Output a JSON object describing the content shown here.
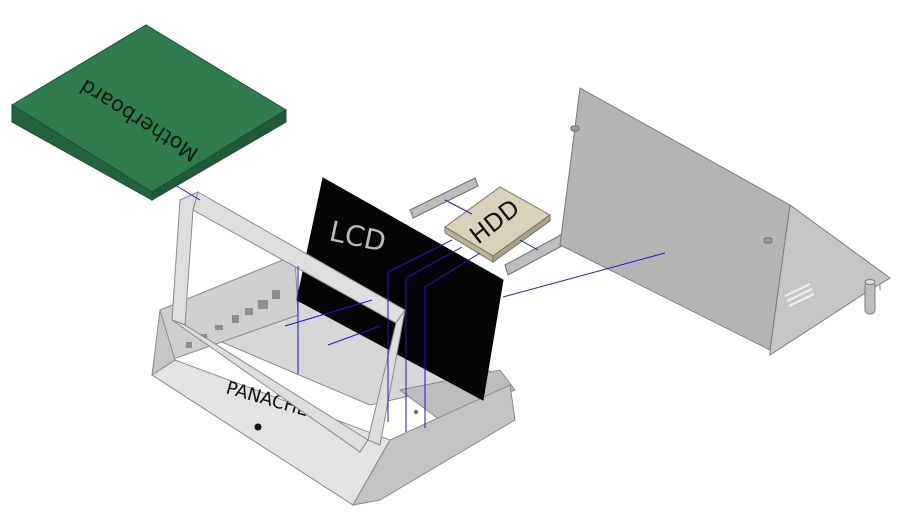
{
  "labels": {
    "motherboard": "Motherboard",
    "lcd": "LCD",
    "hdd": "HDD",
    "brand": "PANACHE"
  },
  "colors": {
    "background": "#ffffff",
    "motherboard_top": "#2f7d4e",
    "motherboard_side": "#1f5b37",
    "lcd_panel": "#050505",
    "case_light": "#e0e0e0",
    "case_mid": "#c9c9c9",
    "case_dark": "#a9a9a9",
    "hdd_body": "#d9d2b8",
    "assembly_line": "#1a1ad0"
  }
}
